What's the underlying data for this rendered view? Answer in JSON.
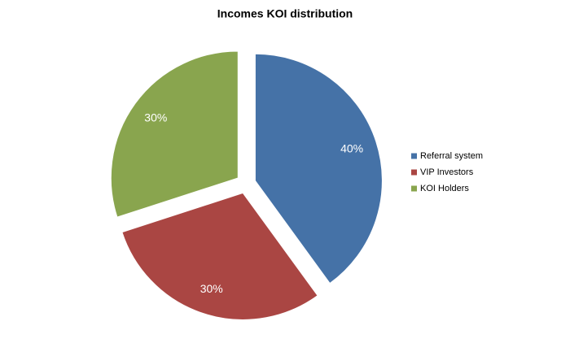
{
  "chart_data": {
    "type": "pie",
    "title": "Incomes KOI distribution",
    "categories": [
      "Referral system",
      "VIP Investors",
      "KOI Holders"
    ],
    "values": [
      40,
      30,
      30
    ],
    "value_labels": [
      "40%",
      "30%",
      "30%"
    ],
    "colors": [
      "#4572a7",
      "#aa4643",
      "#89a54e"
    ],
    "legend": "right"
  }
}
